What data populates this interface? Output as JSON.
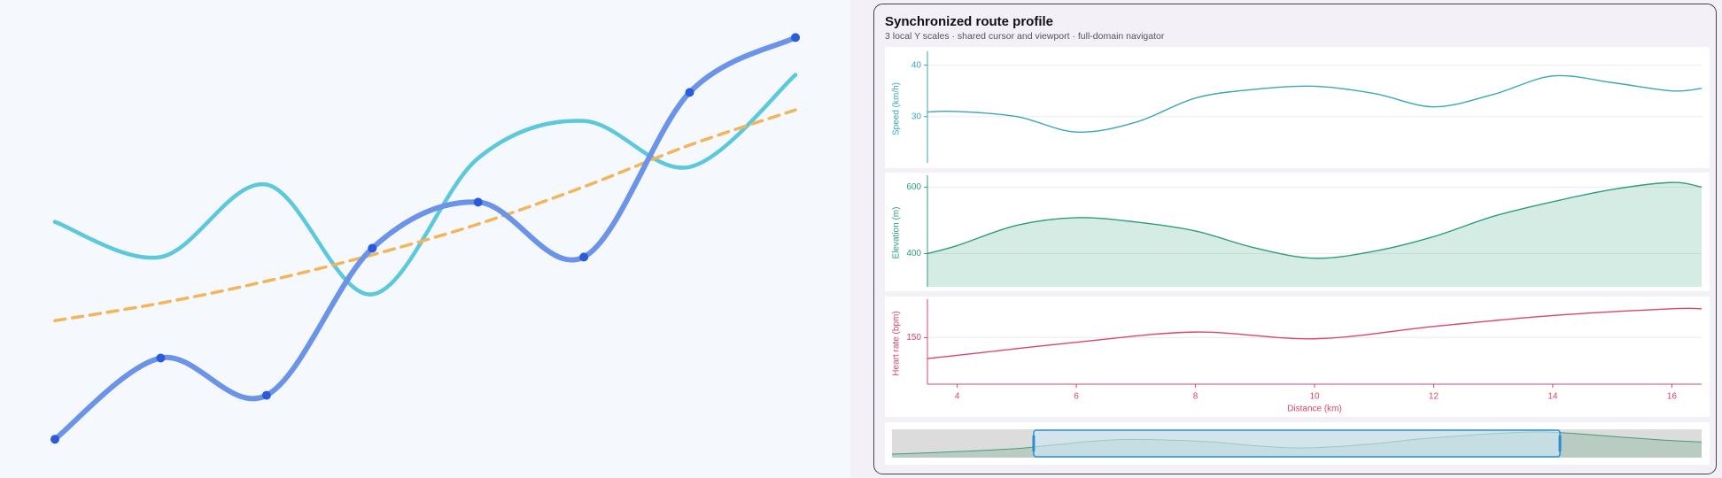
{
  "dashboard": {
    "title": "Synchronized route profile",
    "subtitle": "3 local Y scales · shared cursor and viewport · full-domain navigator"
  },
  "chart_data": [
    {
      "type": "line",
      "categories": [
        null,
        null,
        null,
        null,
        null,
        null,
        null,
        null
      ],
      "ylim": [
        0,
        100
      ],
      "series": [
        {
          "color": "#5bc8dc",
          "values": [
            54.5,
            46.5,
            63,
            38,
            69,
            77.5,
            67,
            88
          ]
        },
        {
          "color": "#f3b55a",
          "dash": true,
          "values": [
            32,
            36,
            41,
            47,
            54,
            62.5,
            72,
            80
          ]
        },
        {
          "color": "#6b93e8",
          "markers": true,
          "marker_color": "#2a5bdc",
          "values": [
            5,
            23.5,
            15,
            48.5,
            59,
            46.5,
            84,
            96.5
          ]
        }
      ]
    },
    {
      "type": "line",
      "y_label": "Speed (km/h)",
      "color": "#3aa6b9",
      "x": [
        3.5,
        4,
        5,
        6,
        7,
        8,
        9,
        10,
        11,
        12,
        13,
        14,
        15,
        16,
        16.5
      ],
      "values": [
        30.9,
        31,
        30,
        27,
        28.9,
        33.6,
        35.3,
        35.9,
        34.5,
        31.9,
        34.3,
        37.9,
        36.6,
        35,
        35.5
      ],
      "xlim": [
        3.5,
        16.5
      ],
      "ylim": [
        21,
        42
      ],
      "yticks": [
        30,
        40
      ],
      "grid": true
    },
    {
      "type": "area",
      "y_label": "Elevation (m)",
      "color": "#2e9e78",
      "x": [
        3.5,
        4,
        5,
        6,
        7,
        8,
        9,
        10,
        11,
        12,
        13,
        14,
        15,
        16,
        16.5
      ],
      "values": [
        400,
        424,
        485,
        508,
        495,
        468,
        417,
        386,
        407,
        451,
        512,
        556,
        593,
        614,
        600
      ],
      "xlim": [
        3.5,
        16.5
      ],
      "ylim": [
        300,
        625
      ],
      "yticks": [
        400,
        600
      ],
      "grid": true
    },
    {
      "type": "line",
      "y_label": "Heart rate (bpm)",
      "x_label": "Distance (km)",
      "color": "#e0436b",
      "x": [
        3.5,
        4,
        6,
        8,
        10,
        12,
        14,
        16,
        16.5
      ],
      "values": [
        141,
        142.4,
        148,
        152.4,
        149.5,
        154.8,
        159.5,
        162.4,
        162.4
      ],
      "xlim": [
        3.5,
        16.5
      ],
      "xticks": [
        4,
        6,
        8,
        10,
        12,
        14,
        16
      ],
      "ylim": [
        130,
        165
      ],
      "yticks": [
        150
      ],
      "grid": true
    },
    {
      "type": "area",
      "color": "#4a9a78",
      "x": [
        0,
        1,
        2,
        3,
        3.5,
        5,
        6,
        7,
        8,
        9,
        10,
        11,
        12,
        13,
        14,
        15,
        16,
        17,
        18,
        19,
        20
      ],
      "values": [
        300,
        320,
        345,
        375,
        400,
        485,
        508,
        495,
        468,
        417,
        386,
        407,
        451,
        512,
        556,
        593,
        614,
        585,
        540,
        500,
        470
      ],
      "xlim": [
        0,
        20
      ],
      "ylim": [
        250,
        650
      ],
      "window": [
        3.5,
        16.5
      ]
    }
  ]
}
